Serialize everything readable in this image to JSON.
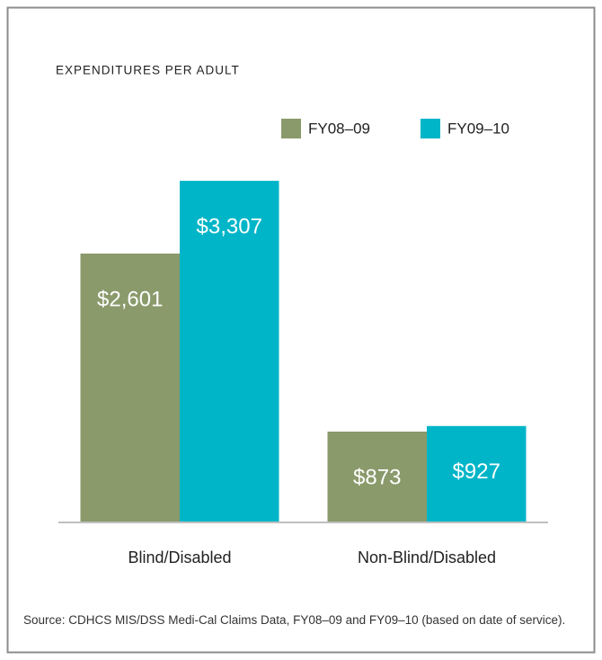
{
  "chart_data": {
    "type": "bar",
    "title": "EXPENDITURES PER ADULT",
    "categories": [
      "Blind/Disabled",
      "Non-Blind/Disabled"
    ],
    "series": [
      {
        "name": "FY08–09",
        "color": "#8a9a6b",
        "values": [
          2601,
          873
        ],
        "value_labels": [
          "$2,601",
          "$873"
        ]
      },
      {
        "name": "FY09–10",
        "color": "#00b5c8",
        "values": [
          3307,
          927
        ],
        "value_labels": [
          "$3,307",
          "$927"
        ]
      }
    ],
    "ylim": [
      0,
      3500
    ],
    "source": "Source: CDHCS MIS/DSS Medi-Cal Claims Data, FY08–09 and FY09–10 (based on date of service)."
  }
}
